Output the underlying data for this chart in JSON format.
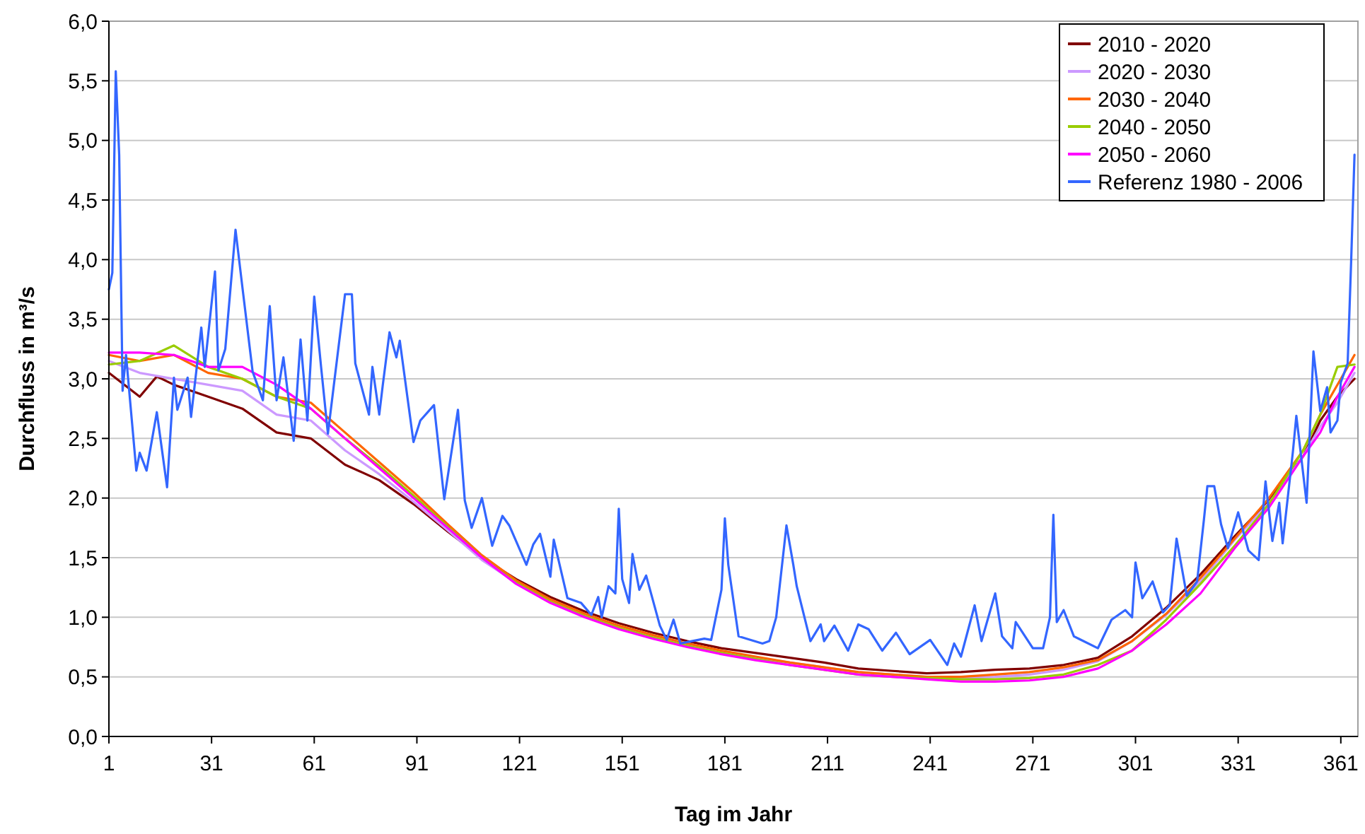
{
  "chart_data": {
    "type": "line",
    "xlabel": "Tag im Jahr",
    "ylabel": "Durchfluss in m³/s",
    "xlim": [
      1,
      366
    ],
    "xticks": [
      1,
      31,
      61,
      91,
      121,
      151,
      181,
      211,
      241,
      271,
      301,
      331,
      361
    ],
    "ylim": [
      0,
      6
    ],
    "yticks": [
      {
        "value": 0,
        "label": "0,0"
      },
      {
        "value": 0.5,
        "label": "0,5"
      },
      {
        "value": 1,
        "label": "1,0"
      },
      {
        "value": 1.5,
        "label": "1,5"
      },
      {
        "value": 2,
        "label": "2,0"
      },
      {
        "value": 2.5,
        "label": "2,5"
      },
      {
        "value": 3,
        "label": "3,0"
      },
      {
        "value": 3.5,
        "label": "3,5"
      },
      {
        "value": 4,
        "label": "4,0"
      },
      {
        "value": 4.5,
        "label": "4,5"
      },
      {
        "value": 5,
        "label": "5,0"
      },
      {
        "value": 5.5,
        "label": "5,5"
      },
      {
        "value": 6,
        "label": "6,0"
      }
    ],
    "grid": "y",
    "legend": "top right",
    "marker": "none",
    "line_style": "solid",
    "x": [
      1,
      10,
      20,
      30,
      40,
      50,
      60,
      70,
      80,
      90,
      100,
      110,
      120,
      130,
      140,
      150,
      160,
      170,
      180,
      190,
      200,
      210,
      220,
      230,
      240,
      250,
      260,
      270,
      280,
      290,
      300,
      310,
      320,
      330,
      340,
      350,
      355,
      360,
      365
    ],
    "series": [
      {
        "name": "2010 - 2020",
        "color": "#800000",
        "x": [
          1,
          10,
          15,
          20,
          30,
          35,
          40,
          50,
          60,
          70,
          80,
          90,
          100,
          110,
          120,
          130,
          140,
          150,
          160,
          170,
          180,
          190,
          200,
          210,
          220,
          230,
          240,
          250,
          260,
          270,
          280,
          290,
          300,
          310,
          320,
          330,
          340,
          350,
          355,
          360,
          365
        ],
        "values": [
          3.05,
          2.85,
          3.02,
          2.95,
          2.85,
          2.8,
          2.75,
          2.55,
          2.5,
          2.28,
          2.15,
          1.95,
          1.72,
          1.5,
          1.32,
          1.17,
          1.05,
          0.95,
          0.87,
          0.8,
          0.74,
          0.7,
          0.66,
          0.62,
          0.57,
          0.55,
          0.53,
          0.54,
          0.56,
          0.57,
          0.6,
          0.66,
          0.84,
          1.08,
          1.36,
          1.68,
          1.98,
          2.35,
          2.65,
          2.85,
          3.0
        ]
      },
      {
        "name": "2020 - 2030",
        "color": "#cc99ff",
        "values": [
          3.15,
          3.05,
          3.0,
          2.95,
          2.9,
          2.7,
          2.65,
          2.4,
          2.2,
          1.97,
          1.73,
          1.48,
          1.29,
          1.14,
          1.02,
          0.92,
          0.84,
          0.77,
          0.71,
          0.66,
          0.62,
          0.58,
          0.54,
          0.52,
          0.5,
          0.49,
          0.5,
          0.52,
          0.56,
          0.63,
          0.8,
          1.02,
          1.3,
          1.65,
          1.96,
          2.35,
          2.6,
          2.8,
          3.05
        ]
      },
      {
        "name": "2030 - 2040",
        "color": "#ff6600",
        "values": [
          3.2,
          3.15,
          3.2,
          3.05,
          3.0,
          2.85,
          2.8,
          2.55,
          2.3,
          2.05,
          1.78,
          1.52,
          1.31,
          1.15,
          1.03,
          0.93,
          0.85,
          0.78,
          0.72,
          0.67,
          0.62,
          0.58,
          0.54,
          0.52,
          0.5,
          0.5,
          0.52,
          0.54,
          0.58,
          0.64,
          0.8,
          1.03,
          1.33,
          1.66,
          2.0,
          2.4,
          2.7,
          2.95,
          3.2
        ]
      },
      {
        "name": "2040 - 2050",
        "color": "#99cc00",
        "values": [
          3.12,
          3.15,
          3.28,
          3.1,
          3.0,
          2.85,
          2.75,
          2.5,
          2.27,
          2.02,
          1.76,
          1.5,
          1.29,
          1.13,
          1.01,
          0.91,
          0.83,
          0.76,
          0.7,
          0.65,
          0.6,
          0.56,
          0.52,
          0.5,
          0.49,
          0.48,
          0.48,
          0.49,
          0.52,
          0.6,
          0.72,
          0.98,
          1.28,
          1.6,
          1.95,
          2.4,
          2.7,
          3.1,
          3.12
        ]
      },
      {
        "name": "2050 - 2060",
        "color": "#ff00ff",
        "values": [
          3.22,
          3.22,
          3.2,
          3.1,
          3.1,
          2.95,
          2.75,
          2.5,
          2.25,
          2.0,
          1.75,
          1.5,
          1.28,
          1.12,
          1.0,
          0.9,
          0.82,
          0.75,
          0.69,
          0.64,
          0.6,
          0.56,
          0.52,
          0.5,
          0.48,
          0.46,
          0.46,
          0.47,
          0.5,
          0.57,
          0.72,
          0.94,
          1.2,
          1.58,
          1.92,
          2.35,
          2.55,
          2.85,
          3.1
        ]
      },
      {
        "name": "Referenz 1980 - 2006",
        "color": "#3366ff",
        "x": [
          1,
          2,
          3,
          4,
          5,
          6,
          9,
          10,
          12,
          15,
          18,
          20,
          21,
          24,
          25,
          28,
          29,
          32,
          33,
          35,
          38,
          40,
          43,
          46,
          48,
          50,
          52,
          55,
          57,
          59,
          61,
          63,
          65,
          67,
          70,
          72,
          73,
          77,
          78,
          80,
          81,
          83,
          85,
          86,
          90,
          92,
          96,
          99,
          103,
          105,
          107,
          110,
          113,
          116,
          118,
          123,
          125,
          127,
          130,
          131,
          135,
          139,
          142,
          144,
          145,
          147,
          149,
          150,
          151,
          153,
          154,
          156,
          158,
          162,
          164,
          166,
          168,
          175,
          177,
          180,
          181,
          182,
          185,
          192,
          194,
          196,
          199,
          201,
          202,
          206,
          209,
          210,
          213,
          217,
          220,
          223,
          227,
          231,
          235,
          241,
          246,
          248,
          250,
          254,
          256,
          260,
          262,
          265,
          266,
          271,
          274,
          276,
          277,
          278,
          280,
          283,
          290,
          294,
          298,
          300,
          301,
          303,
          306,
          309,
          311,
          313,
          316,
          319,
          321,
          322,
          324,
          326,
          328,
          331,
          334,
          337,
          339,
          341,
          343,
          344,
          347,
          348,
          351,
          353,
          355,
          357,
          358,
          360,
          361,
          363,
          364,
          365
        ],
        "values": [
          3.75,
          3.89,
          5.58,
          4.88,
          2.9,
          3.2,
          2.23,
          2.38,
          2.23,
          2.72,
          2.09,
          3.01,
          2.74,
          3.01,
          2.68,
          3.43,
          3.1,
          3.9,
          3.07,
          3.25,
          4.25,
          3.77,
          3.06,
          2.82,
          3.61,
          2.82,
          3.18,
          2.48,
          3.33,
          2.65,
          3.69,
          3.1,
          2.54,
          3.01,
          3.71,
          3.71,
          3.13,
          2.7,
          3.1,
          2.7,
          2.94,
          3.39,
          3.18,
          3.32,
          2.47,
          2.65,
          2.78,
          1.99,
          2.74,
          1.98,
          1.75,
          2.0,
          1.6,
          1.85,
          1.77,
          1.44,
          1.61,
          1.7,
          1.34,
          1.65,
          1.16,
          1.12,
          1.02,
          1.17,
          1.0,
          1.26,
          1.2,
          1.91,
          1.32,
          1.12,
          1.53,
          1.23,
          1.35,
          0.93,
          0.81,
          0.98,
          0.78,
          0.82,
          0.81,
          1.23,
          1.83,
          1.44,
          0.84,
          0.78,
          0.8,
          1.0,
          1.77,
          1.44,
          1.26,
          0.8,
          0.94,
          0.8,
          0.93,
          0.72,
          0.94,
          0.9,
          0.72,
          0.87,
          0.69,
          0.81,
          0.6,
          0.78,
          0.67,
          1.1,
          0.8,
          1.2,
          0.84,
          0.74,
          0.96,
          0.74,
          0.74,
          1.0,
          1.86,
          0.96,
          1.06,
          0.84,
          0.74,
          0.98,
          1.06,
          1.0,
          1.46,
          1.16,
          1.3,
          1.04,
          1.1,
          1.66,
          1.18,
          1.3,
          1.82,
          2.1,
          2.1,
          1.78,
          1.58,
          1.88,
          1.56,
          1.48,
          2.14,
          1.64,
          1.96,
          1.62,
          2.39,
          2.69,
          1.96,
          3.23,
          2.73,
          2.93,
          2.55,
          2.65,
          2.97,
          3.13,
          3.97,
          4.88
        ]
      }
    ]
  }
}
